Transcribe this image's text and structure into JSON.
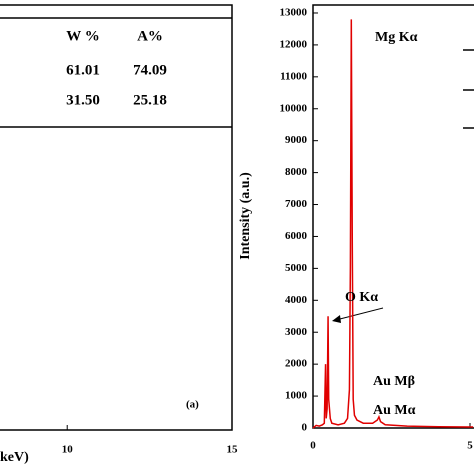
{
  "chart_data": [
    {
      "type": "table",
      "columns": [
        "W %",
        "A%"
      ],
      "rows": [
        [
          "61.01",
          "74.09"
        ],
        [
          "31.50",
          "25.18"
        ]
      ],
      "xlim": [
        7.9,
        15
      ],
      "xticks": [
        10,
        15
      ],
      "xlabel": "keV)",
      "annotation": "(a)"
    },
    {
      "type": "line",
      "ylabel": "Intensity (a.u.)",
      "color": "#e00000",
      "x": [
        0,
        0.1,
        0.2,
        0.3,
        0.36,
        0.4,
        0.42,
        0.45,
        0.48,
        0.5,
        0.55,
        0.6,
        0.8,
        1.0,
        1.1,
        1.16,
        1.19,
        1.22,
        1.25,
        1.28,
        1.32,
        1.4,
        1.6,
        1.9,
        2.05,
        2.1,
        2.15,
        2.3,
        3,
        4,
        5,
        5.1
      ],
      "values": [
        0,
        80,
        60,
        100,
        150,
        2000,
        300,
        600,
        3500,
        900,
        300,
        150,
        100,
        150,
        300,
        1200,
        5000,
        12800,
        6000,
        900,
        400,
        250,
        150,
        150,
        250,
        350,
        200,
        100,
        60,
        40,
        30,
        30
      ],
      "xlim": [
        0,
        5.1
      ],
      "ylim": [
        0,
        13250
      ],
      "xticks": [
        0,
        5
      ],
      "yticks": [
        0,
        1000,
        2000,
        3000,
        4000,
        5000,
        6000,
        7000,
        8000,
        9000,
        10000,
        11000,
        12000,
        13000
      ],
      "annotations": [
        "Mg Kα",
        "O Kα",
        "Au Mβ",
        "Au Mα"
      ]
    }
  ]
}
